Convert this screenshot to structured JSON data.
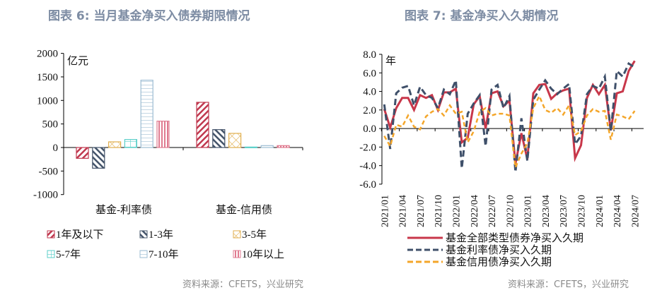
{
  "titles": {
    "left": "图表 6:  当月基金净买入债券期限情况",
    "right": "图表 7:  基金净买入久期情况"
  },
  "source": {
    "left": "资料来源：CFETS，兴业研究",
    "right": "资料来源：CFETS，兴业研究"
  },
  "chart_data": [
    {
      "type": "bar",
      "title": "图表 6:  当月基金净买入债券期限情况",
      "ylabel": "亿元",
      "ylim": [
        -1000,
        2000
      ],
      "yticks": [
        2000,
        1500,
        1000,
        500,
        0,
        -500,
        -1000
      ],
      "grid": false,
      "legend": "bottom",
      "categories": [
        "基金-利率债",
        "基金-信用债"
      ],
      "series": [
        {
          "name": "1年及以下",
          "values": [
            -230,
            960
          ],
          "color": "#c0394f",
          "pattern": "diag-down"
        },
        {
          "name": "1-3年",
          "values": [
            -440,
            380
          ],
          "color": "#44546a",
          "pattern": "diag-up"
        },
        {
          "name": "3-5年",
          "values": [
            120,
            300
          ],
          "color": "#e0ae4c",
          "pattern": "cross"
        },
        {
          "name": "5-7年",
          "values": [
            170,
            10
          ],
          "color": "#5ccfc9",
          "pattern": "grid"
        },
        {
          "name": "7-10年",
          "values": [
            1430,
            40
          ],
          "color": "#9dbdd3",
          "pattern": "horizontal"
        },
        {
          "name": "10年以上",
          "values": [
            560,
            40
          ],
          "color": "#e07b90",
          "pattern": "vertical"
        }
      ]
    },
    {
      "type": "line",
      "title": "图表 7:  基金净买入久期情况",
      "ylabel": "年",
      "ylim": [
        -6,
        8
      ],
      "yticks": [
        "8.0",
        "6.0",
        "4.0",
        "2.0",
        "0.0",
        "-2.0",
        "-4.0",
        "-6.0"
      ],
      "grid": false,
      "legend": "bottom",
      "x": [
        "2021/01",
        "2021/02",
        "2021/03",
        "2021/04",
        "2021/05",
        "2021/06",
        "2021/07",
        "2021/08",
        "2021/09",
        "2021/10",
        "2021/11",
        "2021/12",
        "2022/01",
        "2022/02",
        "2022/03",
        "2022/04",
        "2022/05",
        "2022/06",
        "2022/07",
        "2022/08",
        "2022/09",
        "2022/10",
        "2022/11",
        "2022/12",
        "2023/01",
        "2023/02",
        "2023/03",
        "2023/04",
        "2023/05",
        "2023/06",
        "2023/07",
        "2023/08",
        "2023/09",
        "2023/10",
        "2023/11",
        "2023/12",
        "2024/01",
        "2024/02",
        "2024/03",
        "2024/04",
        "2024/05",
        "2024/06",
        "2024/07"
      ],
      "xtick_labels": [
        "2021/01",
        "2021/04",
        "2021/07",
        "2021/10",
        "2022/01",
        "2022/04",
        "2022/07",
        "2022/10",
        "2023/01",
        "2023/04",
        "2023/07",
        "2023/10",
        "2024/01",
        "2024/04",
        "2024/07"
      ],
      "series": [
        {
          "name": "基金全部类型债券净买入久期",
          "color": "#c8374a",
          "dash": "solid",
          "values": [
            2.1,
            0.1,
            2.2,
            3.3,
            3.3,
            2.0,
            3.6,
            3.3,
            3.6,
            2.0,
            3.9,
            3.9,
            4.3,
            -1.5,
            -1.0,
            2.6,
            3.5,
            0.0,
            3.8,
            4.0,
            2.4,
            3.0,
            -3.8,
            -0.5,
            -3.3,
            3.8,
            4.7,
            4.8,
            3.2,
            3.8,
            4.1,
            4.3,
            -3.2,
            -1.8,
            3.3,
            4.7,
            3.7,
            4.7,
            -0.2,
            3.8,
            4.0,
            6.2,
            7.3
          ]
        },
        {
          "name": "基金利率债净买入久期",
          "color": "#3f506a",
          "dash": "dashed",
          "values": [
            2.6,
            -2.2,
            3.8,
            4.4,
            4.6,
            2.5,
            4.5,
            3.6,
            3.3,
            2.2,
            4.2,
            3.7,
            5.2,
            -4.3,
            1.6,
            2.7,
            3.6,
            -1.9,
            4.2,
            4.7,
            2.2,
            3.5,
            -4.7,
            1.1,
            -3.5,
            3.1,
            4.2,
            5.2,
            4.3,
            3.7,
            4.3,
            4.8,
            -1.7,
            -0.8,
            3.7,
            4.6,
            4.3,
            5.6,
            -0.3,
            6.2,
            5.6,
            7.0,
            6.6
          ]
        },
        {
          "name": "基金信用债净买入久期",
          "color": "#f4a62a",
          "dash": "dashed",
          "values": [
            -0.8,
            -1.9,
            0.4,
            0.2,
            1.4,
            0.2,
            -0.1,
            1.3,
            1.8,
            2.1,
            1.4,
            2.5,
            1.6,
            1.8,
            -1.5,
            -0.3,
            1.8,
            2.2,
            1.4,
            1.6,
            1.6,
            1.4,
            -4.2,
            -2.7,
            -1.6,
            2.2,
            3.5,
            2.0,
            1.7,
            2.2,
            1.5,
            2.5,
            -0.7,
            -0.3,
            1.4,
            2.1,
            1.8,
            1.9,
            -1.2,
            1.5,
            1.3,
            1.0,
            1.9
          ]
        }
      ]
    }
  ]
}
